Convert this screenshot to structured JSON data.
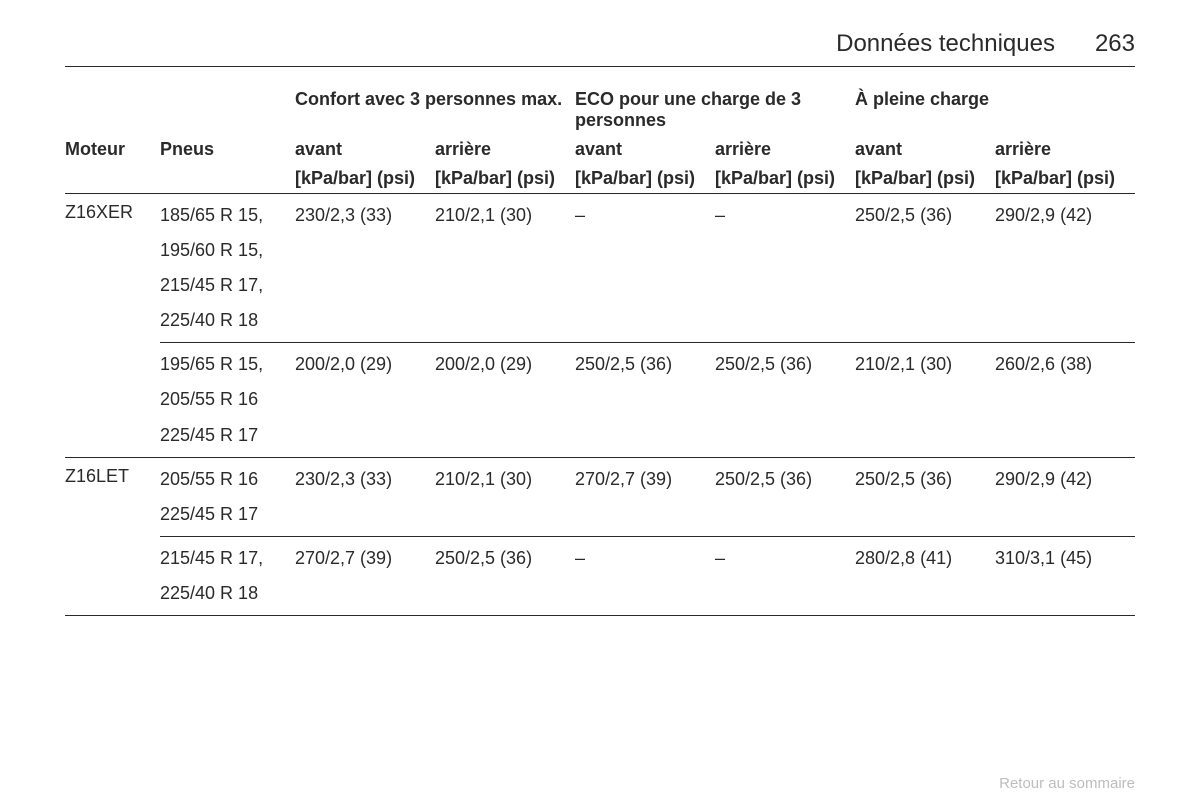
{
  "header": {
    "title": "Données techniques",
    "page_number": "263"
  },
  "columns": {
    "moteur": "Moteur",
    "pneus": "Pneus",
    "group_comfort": "Confort avec 3 personnes max.",
    "group_eco": "ECO pour une charge de 3 personnes",
    "group_full": "À pleine charge",
    "front": "avant",
    "rear": "arrière",
    "unit": "[kPa/bar] (psi)"
  },
  "rows": [
    {
      "moteur": "Z16XER",
      "subrows": [
        {
          "tyres": [
            "185/65 R 15,",
            "195/60 R 15,",
            "215/45 R 17,",
            "225/40 R 18"
          ],
          "comfort_front": "230/2,3 (33)",
          "comfort_rear": "210/2,1 (30)",
          "eco_front": "–",
          "eco_rear": "–",
          "full_front": "250/2,5 (36)",
          "full_rear": "290/2,9 (42)"
        },
        {
          "tyres": [
            "195/65 R 15,",
            "205/55 R 16",
            "225/45 R 17"
          ],
          "comfort_front": "200/2,0 (29)",
          "comfort_rear": "200/2,0 (29)",
          "eco_front": "250/2,5 (36)",
          "eco_rear": "250/2,5 (36)",
          "full_front": "210/2,1 (30)",
          "full_rear": "260/2,6 (38)"
        }
      ]
    },
    {
      "moteur": "Z16LET",
      "subrows": [
        {
          "tyres": [
            "205/55 R 16",
            "225/45 R 17"
          ],
          "comfort_front": "230/2,3 (33)",
          "comfort_rear": "210/2,1 (30)",
          "eco_front": "270/2,7 (39)",
          "eco_rear": "250/2,5 (36)",
          "full_front": "250/2,5 (36)",
          "full_rear": "290/2,9 (42)"
        },
        {
          "tyres": [
            "215/45 R 17,",
            "225/40 R 18"
          ],
          "comfort_front": "270/2,7 (39)",
          "comfort_rear": "250/2,5 (36)",
          "eco_front": "–",
          "eco_rear": "–",
          "full_front": "280/2,8 (41)",
          "full_rear": "310/3,1 (45)"
        }
      ]
    }
  ],
  "footer": {
    "return_link": "Retour au sommaire"
  }
}
